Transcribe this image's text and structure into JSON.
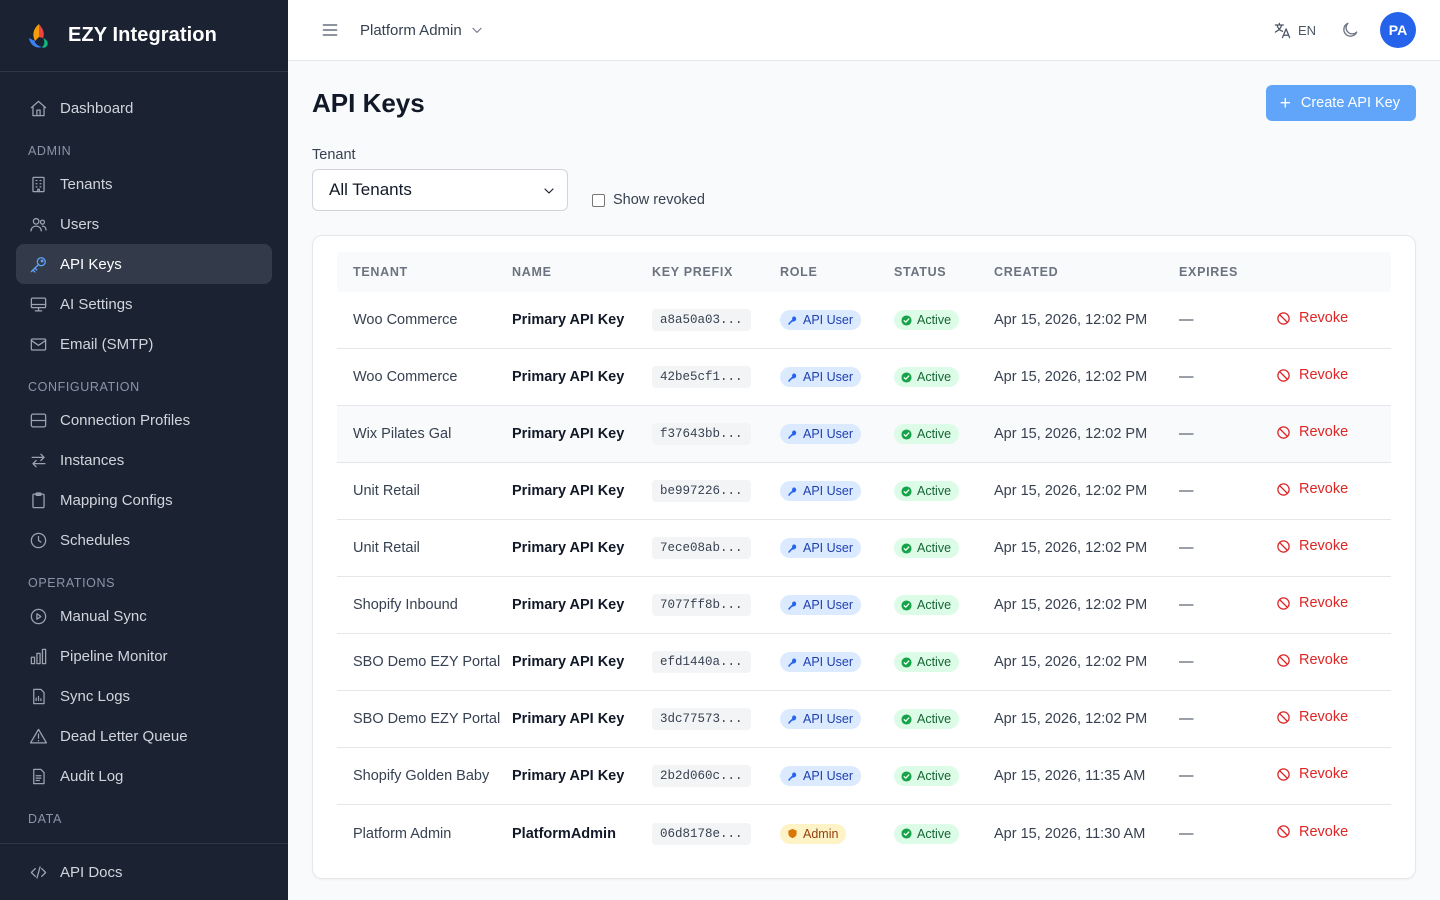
{
  "app": {
    "name": "EZY Integration"
  },
  "sidebar": {
    "dashboard": "Dashboard",
    "sections": {
      "admin": "ADMIN",
      "configuration": "CONFIGURATION",
      "operations": "OPERATIONS",
      "data": "DATA"
    },
    "admin_items": [
      {
        "label": "Tenants",
        "icon": "building-icon"
      },
      {
        "label": "Users",
        "icon": "users-icon"
      },
      {
        "label": "API Keys",
        "icon": "key-icon",
        "active": true
      },
      {
        "label": "AI Settings",
        "icon": "monitor-icon"
      },
      {
        "label": "Email (SMTP)",
        "icon": "mail-icon"
      }
    ],
    "configuration_items": [
      {
        "label": "Connection Profiles",
        "icon": "database-icon"
      },
      {
        "label": "Instances",
        "icon": "swap-icon"
      },
      {
        "label": "Mapping Configs",
        "icon": "clipboard-icon"
      },
      {
        "label": "Schedules",
        "icon": "clock-icon"
      }
    ],
    "operations_items": [
      {
        "label": "Manual Sync",
        "icon": "play-circle-icon"
      },
      {
        "label": "Pipeline Monitor",
        "icon": "bar-chart-icon"
      },
      {
        "label": "Sync Logs",
        "icon": "file-chart-icon"
      },
      {
        "label": "Dead Letter Queue",
        "icon": "warning-icon"
      },
      {
        "label": "Audit Log",
        "icon": "file-text-icon"
      }
    ],
    "footer_item": {
      "label": "API Docs",
      "icon": "code-icon"
    }
  },
  "header": {
    "tenant": "Platform Admin",
    "language": "EN",
    "avatar_initials": "PA"
  },
  "page": {
    "title": "API Keys",
    "create_button": "Create API Key",
    "filter_label": "Tenant",
    "filter_value": "All Tenants",
    "show_revoked": "Show revoked"
  },
  "table": {
    "columns": [
      "TENANT",
      "NAME",
      "KEY PREFIX",
      "ROLE",
      "STATUS",
      "CREATED",
      "EXPIRES"
    ],
    "rows": [
      {
        "tenant": "Woo Commerce",
        "name": "Primary API Key",
        "prefix": "a8a50a03...",
        "role": "API User",
        "status": "Active",
        "created": "Apr 15, 2026, 12:02 PM",
        "expires": "—",
        "action": "Revoke"
      },
      {
        "tenant": "Woo Commerce",
        "name": "Primary API Key",
        "prefix": "42be5cf1...",
        "role": "API User",
        "status": "Active",
        "created": "Apr 15, 2026, 12:02 PM",
        "expires": "—",
        "action": "Revoke"
      },
      {
        "tenant": "Wix Pilates Gal",
        "name": "Primary API Key",
        "prefix": "f37643bb...",
        "role": "API User",
        "status": "Active",
        "created": "Apr 15, 2026, 12:02 PM",
        "expires": "—",
        "action": "Revoke"
      },
      {
        "tenant": "Unit Retail",
        "name": "Primary API Key",
        "prefix": "be997226...",
        "role": "API User",
        "status": "Active",
        "created": "Apr 15, 2026, 12:02 PM",
        "expires": "—",
        "action": "Revoke"
      },
      {
        "tenant": "Unit Retail",
        "name": "Primary API Key",
        "prefix": "7ece08ab...",
        "role": "API User",
        "status": "Active",
        "created": "Apr 15, 2026, 12:02 PM",
        "expires": "—",
        "action": "Revoke"
      },
      {
        "tenant": "Shopify Inbound",
        "name": "Primary API Key",
        "prefix": "7077ff8b...",
        "role": "API User",
        "status": "Active",
        "created": "Apr 15, 2026, 12:02 PM",
        "expires": "—",
        "action": "Revoke"
      },
      {
        "tenant": "SBO Demo EZY Portal",
        "name": "Primary API Key",
        "prefix": "efd1440a...",
        "role": "API User",
        "status": "Active",
        "created": "Apr 15, 2026, 12:02 PM",
        "expires": "—",
        "action": "Revoke"
      },
      {
        "tenant": "SBO Demo EZY Portal",
        "name": "Primary API Key",
        "prefix": "3dc77573...",
        "role": "API User",
        "status": "Active",
        "created": "Apr 15, 2026, 12:02 PM",
        "expires": "—",
        "action": "Revoke"
      },
      {
        "tenant": "Shopify Golden Baby",
        "name": "Primary API Key",
        "prefix": "2b2d060c...",
        "role": "API User",
        "status": "Active",
        "created": "Apr 15, 2026, 11:35 AM",
        "expires": "—",
        "action": "Revoke"
      },
      {
        "tenant": "Platform Admin",
        "name": "PlatformAdmin",
        "prefix": "06d8178e...",
        "role": "Admin",
        "status": "Active",
        "created": "Apr 15, 2026, 11:30 AM",
        "expires": "—",
        "action": "Revoke"
      }
    ]
  },
  "colors": {
    "sidebar_bg": "#1b2333",
    "accent": "#60a5fa",
    "avatar": "#2563eb",
    "danger": "#dc2626",
    "success_bg": "#dcfce7",
    "role_bg": "#dbeafe",
    "admin_bg": "#fef3c7"
  }
}
